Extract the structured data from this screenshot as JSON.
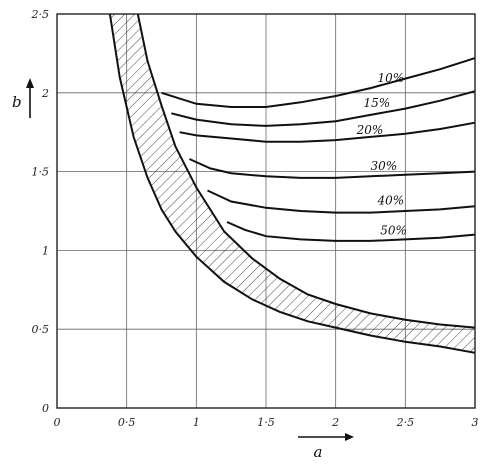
{
  "chart_data": {
    "type": "line",
    "xlabel": "a",
    "ylabel": "b",
    "xlim": [
      0,
      3
    ],
    "ylim": [
      0,
      2.5
    ],
    "grid": true,
    "x_ticks": [
      {
        "value": 0,
        "label": "0"
      },
      {
        "value": 0.5,
        "label": "0·5"
      },
      {
        "value": 1,
        "label": "1"
      },
      {
        "value": 1.5,
        "label": "1·5"
      },
      {
        "value": 2,
        "label": "2"
      },
      {
        "value": 2.5,
        "label": "2·5"
      },
      {
        "value": 3,
        "label": "3"
      }
    ],
    "y_ticks": [
      {
        "value": 0,
        "label": "0"
      },
      {
        "value": 0.5,
        "label": "0·5"
      },
      {
        "value": 1,
        "label": "1"
      },
      {
        "value": 1.5,
        "label": "1·5"
      },
      {
        "value": 2,
        "label": "2"
      },
      {
        "value": 2.5,
        "label": "2·5"
      }
    ],
    "band": {
      "hatched": true,
      "upper": {
        "x": [
          0.58,
          0.65,
          0.75,
          0.85,
          1.0,
          1.2,
          1.4,
          1.6,
          1.8,
          2.0,
          2.25,
          2.5,
          2.75,
          3.0
        ],
        "y": [
          2.5,
          2.2,
          1.92,
          1.66,
          1.4,
          1.12,
          0.95,
          0.82,
          0.72,
          0.66,
          0.6,
          0.56,
          0.53,
          0.51
        ]
      },
      "lower": {
        "x": [
          0.38,
          0.45,
          0.55,
          0.65,
          0.75,
          0.85,
          1.0,
          1.2,
          1.4,
          1.6,
          1.8,
          2.0,
          2.25,
          2.5,
          2.75,
          3.0
        ],
        "y": [
          2.5,
          2.1,
          1.72,
          1.46,
          1.26,
          1.12,
          0.96,
          0.8,
          0.69,
          0.61,
          0.55,
          0.51,
          0.46,
          0.42,
          0.39,
          0.35
        ]
      }
    },
    "series": [
      {
        "name": "10%",
        "x": [
          0.75,
          1.0,
          1.25,
          1.5,
          1.75,
          2.0,
          2.25,
          2.5,
          2.75,
          3.0
        ],
        "y": [
          2.0,
          1.93,
          1.91,
          1.91,
          1.94,
          1.98,
          2.03,
          2.09,
          2.15,
          2.22
        ]
      },
      {
        "name": "15%",
        "x": [
          0.82,
          1.0,
          1.25,
          1.5,
          1.75,
          2.0,
          2.25,
          2.5,
          2.75,
          3.0
        ],
        "y": [
          1.87,
          1.83,
          1.8,
          1.79,
          1.8,
          1.82,
          1.86,
          1.9,
          1.95,
          2.01
        ]
      },
      {
        "name": "20%",
        "x": [
          0.88,
          1.0,
          1.25,
          1.5,
          1.75,
          2.0,
          2.25,
          2.5,
          2.75,
          3.0
        ],
        "y": [
          1.75,
          1.73,
          1.71,
          1.69,
          1.69,
          1.7,
          1.72,
          1.74,
          1.77,
          1.81
        ]
      },
      {
        "name": "30%",
        "x": [
          0.95,
          1.1,
          1.25,
          1.5,
          1.75,
          2.0,
          2.25,
          2.5,
          2.75,
          3.0
        ],
        "y": [
          1.58,
          1.52,
          1.49,
          1.47,
          1.46,
          1.46,
          1.47,
          1.48,
          1.49,
          1.5
        ]
      },
      {
        "name": "40%",
        "x": [
          1.08,
          1.25,
          1.5,
          1.75,
          2.0,
          2.25,
          2.5,
          2.75,
          3.0
        ],
        "y": [
          1.38,
          1.31,
          1.27,
          1.25,
          1.24,
          1.24,
          1.25,
          1.26,
          1.28
        ]
      },
      {
        "name": "50%",
        "x": [
          1.22,
          1.35,
          1.5,
          1.75,
          2.0,
          2.25,
          2.5,
          2.75,
          3.0
        ],
        "y": [
          1.18,
          1.13,
          1.09,
          1.07,
          1.06,
          1.06,
          1.07,
          1.08,
          1.1
        ]
      }
    ]
  }
}
